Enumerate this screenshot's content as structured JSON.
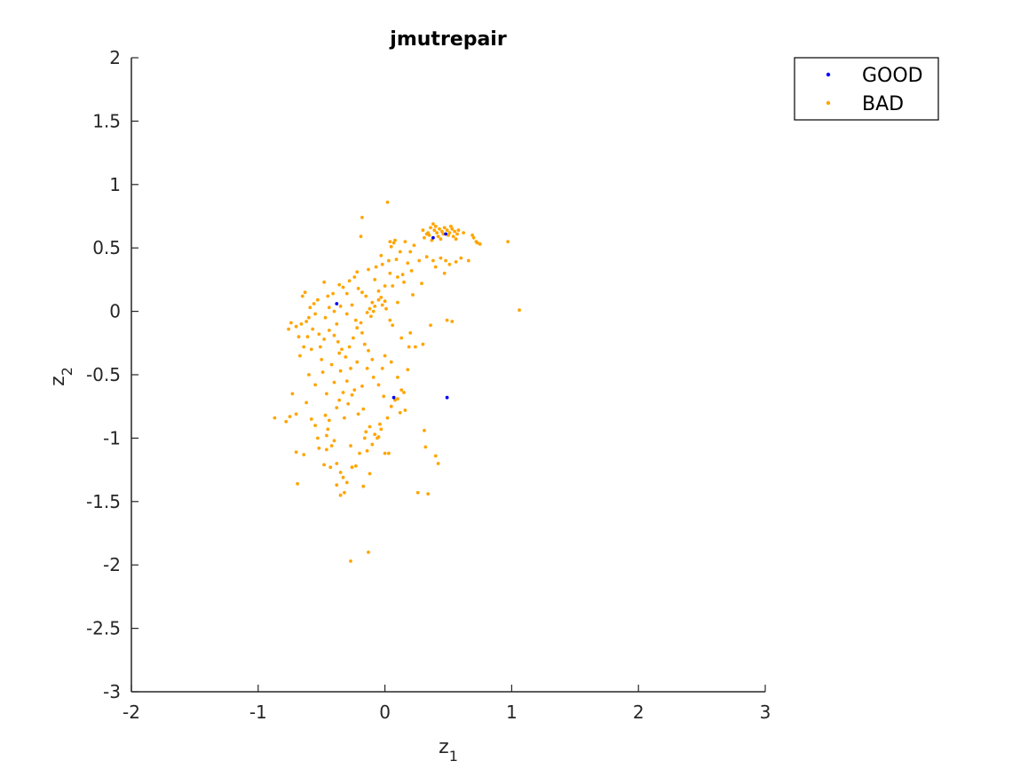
{
  "chart_data": {
    "type": "scatter",
    "title": "jmutrepair",
    "xlabel": {
      "base": "z",
      "sub": "1"
    },
    "ylabel": {
      "base": "z",
      "sub": "2"
    },
    "xlim": [
      -2,
      3
    ],
    "ylim": [
      -3,
      2
    ],
    "xticks": [
      "-2",
      "-1",
      "0",
      "1",
      "2",
      "3"
    ],
    "yticks": [
      "2",
      "1.5",
      "1",
      "0.5",
      "0",
      "-0.5",
      "-1",
      "-1.5",
      "-2",
      "-2.5",
      "-3"
    ],
    "grid": false,
    "legend_position": "top-right",
    "series": [
      {
        "name": "GOOD",
        "color": "#0000ff",
        "points": [
          [
            -0.38,
            0.06
          ],
          [
            0.07,
            -0.68
          ],
          [
            0.49,
            -0.68
          ],
          [
            0.38,
            0.58
          ],
          [
            0.48,
            0.61
          ]
        ]
      },
      {
        "name": "BAD",
        "color": "#ffa500",
        "points": [
          [
            0.02,
            0.86
          ],
          [
            -0.18,
            0.74
          ],
          [
            -0.19,
            0.59
          ],
          [
            0.04,
            0.55
          ],
          [
            0.07,
            0.54
          ],
          [
            0.05,
            0.51
          ],
          [
            0.08,
            0.56
          ],
          [
            0.12,
            0.47
          ],
          [
            0.09,
            0.41
          ],
          [
            0.03,
            0.4
          ],
          [
            -0.02,
            0.37
          ],
          [
            -0.07,
            0.35
          ],
          [
            -0.13,
            0.33
          ],
          [
            -0.22,
            0.31
          ],
          [
            -0.03,
            0.44
          ],
          [
            0.18,
            0.38
          ],
          [
            0.21,
            0.32
          ],
          [
            0.14,
            0.29
          ],
          [
            0.1,
            0.27
          ],
          [
            0.15,
            0.23
          ],
          [
            0.22,
            0.13
          ],
          [
            0.31,
            0.58
          ],
          [
            0.3,
            0.64
          ],
          [
            0.34,
            0.62
          ],
          [
            0.36,
            0.66
          ],
          [
            0.39,
            0.64
          ],
          [
            0.41,
            0.62
          ],
          [
            0.43,
            0.65
          ],
          [
            0.45,
            0.63
          ],
          [
            0.47,
            0.66
          ],
          [
            0.49,
            0.64
          ],
          [
            0.51,
            0.62
          ],
          [
            0.53,
            0.65
          ],
          [
            0.55,
            0.63
          ],
          [
            0.57,
            0.61
          ],
          [
            0.42,
            0.59
          ],
          [
            0.44,
            0.57
          ],
          [
            0.46,
            0.61
          ],
          [
            0.5,
            0.6
          ],
          [
            0.54,
            0.59
          ],
          [
            0.56,
            0.57
          ],
          [
            0.4,
            0.67
          ],
          [
            0.38,
            0.69
          ],
          [
            0.52,
            0.67
          ],
          [
            0.35,
            0.6
          ],
          [
            0.58,
            0.64
          ],
          [
            0.33,
            0.61
          ],
          [
            0.7,
            0.58
          ],
          [
            0.73,
            0.54
          ],
          [
            0.75,
            0.53
          ],
          [
            0.72,
            0.55
          ],
          [
            0.97,
            0.55
          ],
          [
            1.06,
            0.01
          ],
          [
            0.66,
            0.4
          ],
          [
            0.56,
            0.39
          ],
          [
            0.51,
            0.37
          ],
          [
            0.44,
            0.42
          ],
          [
            0.38,
            0.4
          ],
          [
            0.33,
            0.43
          ],
          [
            0.4,
            0.35
          ],
          [
            0.47,
            0.3
          ],
          [
            0.29,
            0.22
          ],
          [
            0.49,
            -0.07
          ],
          [
            0.53,
            -0.08
          ],
          [
            0.3,
            -0.26
          ],
          [
            0.19,
            -0.28
          ],
          [
            0.18,
            -0.46
          ],
          [
            0.2,
            -0.17
          ],
          [
            0.13,
            -0.21
          ],
          [
            0.06,
            -0.11
          ],
          [
            0.04,
            -0.07
          ],
          [
            0.01,
            0.02
          ],
          [
            -0.02,
            0.05
          ],
          [
            -0.05,
            0.09
          ],
          [
            -0.08,
            0.04
          ],
          [
            -0.1,
            0.07
          ],
          [
            -0.12,
            0.02
          ],
          [
            -0.14,
            -0.01
          ],
          [
            -0.11,
            -0.04
          ],
          [
            -0.09,
            0.0
          ],
          [
            -0.03,
            0.11
          ],
          [
            0.0,
            0.08
          ],
          [
            -0.15,
            0.12
          ],
          [
            -0.18,
            0.15
          ],
          [
            -0.21,
            0.18
          ],
          [
            -0.24,
            0.27
          ],
          [
            -0.28,
            0.24
          ],
          [
            -0.3,
            0.14
          ],
          [
            -0.33,
            0.19
          ],
          [
            -0.36,
            0.21
          ],
          [
            -0.41,
            0.14
          ],
          [
            -0.45,
            0.12
          ],
          [
            -0.48,
            0.23
          ],
          [
            -0.53,
            0.09
          ],
          [
            -0.56,
            0.06
          ],
          [
            -0.59,
            0.03
          ],
          [
            -0.63,
            0.15
          ],
          [
            -0.65,
            0.12
          ],
          [
            -0.55,
            -0.02
          ],
          [
            -0.6,
            -0.05
          ],
          [
            -0.62,
            -0.08
          ],
          [
            -0.66,
            -0.1
          ],
          [
            -0.7,
            -0.12
          ],
          [
            -0.74,
            -0.09
          ],
          [
            -0.76,
            -0.14
          ],
          [
            -0.68,
            -0.2
          ],
          [
            -0.64,
            -0.28
          ],
          [
            -0.58,
            -0.3
          ],
          [
            -0.52,
            -0.18
          ],
          [
            -0.48,
            -0.22
          ],
          [
            -0.44,
            -0.15
          ],
          [
            -0.4,
            -0.19
          ],
          [
            -0.37,
            -0.24
          ],
          [
            -0.34,
            -0.3
          ],
          [
            -0.31,
            -0.36
          ],
          [
            -0.28,
            -0.28
          ],
          [
            -0.25,
            -0.21
          ],
          [
            -0.22,
            -0.13
          ],
          [
            -0.19,
            -0.09
          ],
          [
            -0.16,
            -0.26
          ],
          [
            -0.13,
            -0.31
          ],
          [
            -0.1,
            -0.38
          ],
          [
            -0.22,
            -0.4
          ],
          [
            -0.27,
            -0.45
          ],
          [
            -0.35,
            -0.47
          ],
          [
            -0.42,
            -0.42
          ],
          [
            -0.5,
            -0.38
          ],
          [
            -0.55,
            -0.58
          ],
          [
            -0.6,
            -0.5
          ],
          [
            -0.73,
            -0.65
          ],
          [
            -0.75,
            -0.83
          ],
          [
            -0.7,
            -0.81
          ],
          [
            -0.62,
            -0.72
          ],
          [
            -0.58,
            -0.85
          ],
          [
            -0.47,
            -0.82
          ],
          [
            -0.44,
            -0.86
          ],
          [
            -0.45,
            -0.93
          ],
          [
            -0.46,
            -0.98
          ],
          [
            -0.4,
            -1.02
          ],
          [
            -0.42,
            -1.06
          ],
          [
            -0.38,
            -0.76
          ],
          [
            -0.36,
            -0.7
          ],
          [
            -0.33,
            -0.64
          ],
          [
            -0.29,
            -0.73
          ],
          [
            -0.26,
            -0.66
          ],
          [
            -0.21,
            -0.81
          ],
          [
            -0.17,
            -0.77
          ],
          [
            -0.12,
            -0.91
          ],
          [
            -0.08,
            -0.97
          ],
          [
            -0.05,
            -0.99
          ],
          [
            -0.03,
            -0.93
          ],
          [
            0.02,
            -0.84
          ],
          [
            0.05,
            -0.75
          ],
          [
            0.1,
            -0.69
          ],
          [
            0.13,
            -0.62
          ],
          [
            0.15,
            -0.64
          ],
          [
            0.16,
            -0.78
          ],
          [
            0.12,
            -0.8
          ],
          [
            0.08,
            -0.7
          ],
          [
            -0.01,
            -0.67
          ],
          [
            -0.05,
            -0.58
          ],
          [
            -0.09,
            -0.52
          ],
          [
            -0.14,
            -0.45
          ],
          [
            -0.18,
            -0.59
          ],
          [
            -0.87,
            -0.84
          ],
          [
            -0.78,
            -0.87
          ],
          [
            -0.64,
            -1.13
          ],
          [
            -0.7,
            -1.11
          ],
          [
            -0.69,
            -1.36
          ],
          [
            -0.52,
            -1.08
          ],
          [
            -0.46,
            -1.09
          ],
          [
            -0.43,
            -1.23
          ],
          [
            -0.38,
            -1.2
          ],
          [
            -0.35,
            -1.27
          ],
          [
            -0.33,
            -1.31
          ],
          [
            -0.3,
            -1.35
          ],
          [
            -0.38,
            -1.37
          ],
          [
            -0.35,
            -1.45
          ],
          [
            -0.32,
            -1.43
          ],
          [
            -0.26,
            -1.23
          ],
          [
            -0.23,
            -1.22
          ],
          [
            -0.17,
            -1.38
          ],
          [
            -0.14,
            -1.1
          ],
          [
            -0.1,
            -1.05
          ],
          [
            -0.06,
            -1.0
          ],
          [
            -0.15,
            -0.95
          ],
          [
            -0.16,
            -1.0
          ],
          [
            -0.04,
            -0.89
          ],
          [
            0.0,
            -1.12
          ],
          [
            0.03,
            -1.12
          ],
          [
            0.26,
            -1.43
          ],
          [
            0.34,
            -1.44
          ],
          [
            0.31,
            -0.94
          ],
          [
            0.32,
            -1.07
          ],
          [
            0.4,
            -1.14
          ],
          [
            0.42,
            -1.2
          ],
          [
            -0.27,
            -1.97
          ],
          [
            -0.13,
            -1.9
          ],
          [
            0.0,
            0.2
          ],
          [
            -0.05,
            0.16
          ],
          [
            -0.35,
            0.04
          ],
          [
            -0.4,
            0.0
          ],
          [
            -0.44,
            0.03
          ],
          [
            -0.47,
            -0.05
          ],
          [
            -0.38,
            -0.1
          ],
          [
            -0.3,
            -0.02
          ],
          [
            -0.26,
            0.05
          ],
          [
            -0.23,
            -0.07
          ],
          [
            -0.18,
            -0.17
          ],
          [
            -0.36,
            -0.33
          ],
          [
            -0.51,
            -0.28
          ],
          [
            -0.57,
            -0.14
          ],
          [
            -0.61,
            -0.2
          ],
          [
            -0.67,
            -0.35
          ],
          [
            -0.49,
            -0.48
          ],
          [
            0.24,
            -0.28
          ],
          [
            0.36,
            -0.11
          ],
          [
            0.27,
            0.4
          ],
          [
            0.06,
            0.2
          ],
          [
            0.1,
            0.07
          ],
          [
            0.04,
            0.3
          ],
          [
            -0.08,
            0.25
          ],
          [
            0.16,
            0.55
          ],
          [
            0.2,
            0.47
          ],
          [
            0.23,
            0.52
          ],
          [
            0.48,
            0.4
          ],
          [
            0.6,
            0.42
          ],
          [
            0.69,
            0.6
          ],
          [
            0.62,
            0.62
          ],
          [
            0.37,
            0.56
          ],
          [
            0.05,
            -0.4
          ],
          [
            0.0,
            -0.35
          ],
          [
            -0.02,
            -0.45
          ],
          [
            0.1,
            -0.52
          ],
          [
            -0.3,
            -0.55
          ],
          [
            -0.24,
            -0.62
          ],
          [
            -0.32,
            -0.84
          ],
          [
            -0.4,
            -0.56
          ],
          [
            -0.46,
            -0.65
          ],
          [
            -0.27,
            -1.06
          ],
          [
            -0.2,
            -1.12
          ],
          [
            -0.12,
            -1.28
          ],
          [
            -0.53,
            -1.0
          ],
          [
            -0.48,
            -1.21
          ],
          [
            -0.55,
            -0.9
          ]
        ]
      }
    ]
  }
}
